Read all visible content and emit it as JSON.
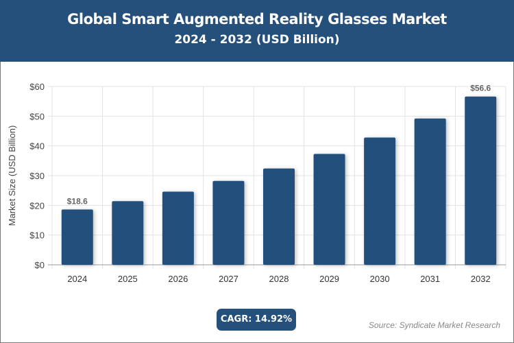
{
  "header": {
    "title": "Global Smart Augmented Reality Glasses Market",
    "subtitle": "2024 - 2032 (USD Billion)"
  },
  "chart_data": {
    "type": "bar",
    "title": "Global Smart Augmented Reality Glasses Market",
    "subtitle": "2024 - 2032 (USD Billion)",
    "ylabel": "Market Size (USD Billion)",
    "xlabel": "",
    "categories": [
      "2024",
      "2025",
      "2026",
      "2027",
      "2028",
      "2029",
      "2030",
      "2031",
      "2032"
    ],
    "values": [
      18.6,
      21.4,
      24.6,
      28.2,
      32.4,
      37.3,
      42.8,
      49.2,
      56.6
    ],
    "data_labels": {
      "0": "$18.6",
      "8": "$56.6"
    },
    "ylim": [
      0,
      60
    ],
    "yticks": [
      "$0",
      "$10",
      "$20",
      "$30",
      "$40",
      "$50",
      "$60"
    ],
    "grid": true,
    "bar_color": "#24507b"
  },
  "cagr": "CAGR: 14.92%",
  "source": "Source: Syndicate Market Research"
}
